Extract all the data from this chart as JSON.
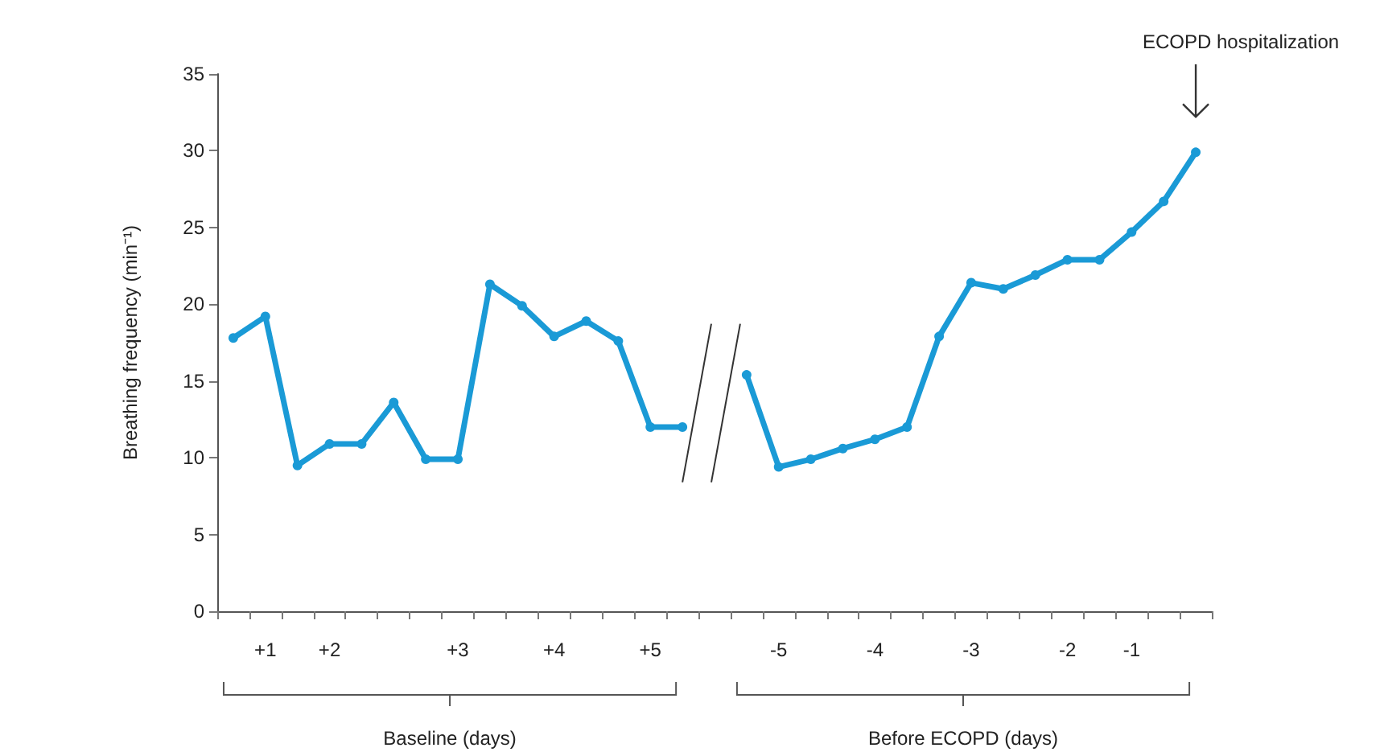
{
  "chart_data": {
    "type": "line",
    "ylabel": "Breathing frequency (min⁻¹)",
    "categories": [
      null,
      "+1",
      null,
      "+2",
      null,
      null,
      null,
      "+3",
      null,
      null,
      "+4",
      null,
      null,
      "+5",
      null,
      null,
      null,
      "-5",
      null,
      null,
      "-4",
      null,
      null,
      "-3",
      null,
      null,
      "-2",
      null,
      "-1",
      null,
      null
    ],
    "series": [
      {
        "color": "#1a9ad6",
        "values": [
          17.8,
          19.2,
          9.5,
          10.9,
          10.9,
          13.6,
          9.9,
          9.9,
          21.3,
          19.9,
          17.9,
          18.9,
          17.6,
          12,
          12,
          null,
          15.4,
          9.4,
          9.9,
          10.6,
          11.2,
          12,
          17.9,
          21.4,
          21,
          21.9,
          22.9,
          22.9,
          24.7,
          26.7,
          29.9
        ]
      }
    ],
    "ylim": [
      0,
      35
    ],
    "yticks": [
      0,
      5,
      10,
      15,
      20,
      25,
      30,
      35
    ],
    "grid": false,
    "marker": "circle",
    "line_style": "solid",
    "annotations": [
      "Baseline (days)",
      "Before ECOPD (days)",
      "ECOPD hospitalization"
    ]
  }
}
